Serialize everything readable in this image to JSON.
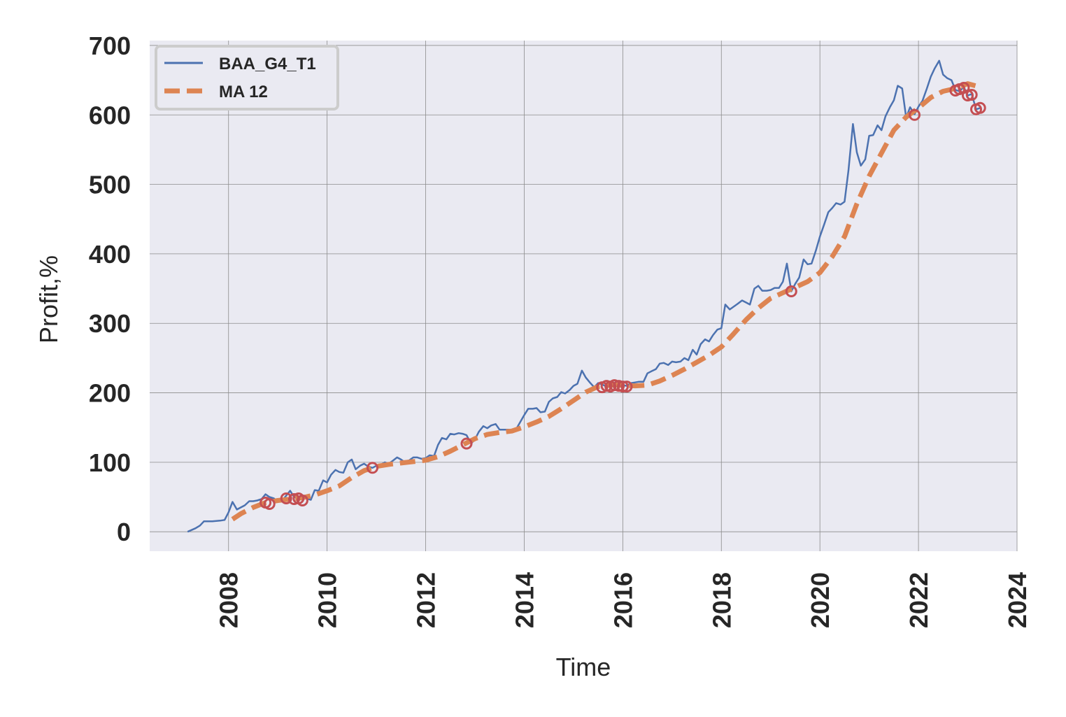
{
  "chart_data": {
    "type": "line",
    "xlabel": "Time",
    "ylabel": "Profit,%",
    "xlim": [
      2006.4,
      2024.0
    ],
    "ylim": [
      -28,
      707
    ],
    "x_ticks": [
      2008,
      2010,
      2012,
      2014,
      2016,
      2018,
      2020,
      2022,
      2024
    ],
    "y_ticks": [
      0,
      100,
      200,
      300,
      400,
      500,
      600,
      700
    ],
    "grid": true,
    "legend_position": "top-left",
    "background_color": "#eaeaf2",
    "series": [
      {
        "name": "BAA_G4_T1",
        "color": "#4c72b0",
        "style": "solid",
        "points": [
          [
            2007.17,
            0
          ],
          [
            2007.33,
            5
          ],
          [
            2007.42,
            9
          ],
          [
            2007.5,
            15
          ],
          [
            2007.67,
            15
          ],
          [
            2007.83,
            16
          ],
          [
            2007.92,
            17
          ],
          [
            2008.0,
            28
          ],
          [
            2008.08,
            43
          ],
          [
            2008.17,
            32
          ],
          [
            2008.25,
            35
          ],
          [
            2008.33,
            38
          ],
          [
            2008.42,
            44
          ],
          [
            2008.5,
            44
          ],
          [
            2008.58,
            45
          ],
          [
            2008.67,
            47
          ],
          [
            2008.75,
            54
          ],
          [
            2008.83,
            50
          ],
          [
            2008.92,
            48
          ],
          [
            2009.0,
            43
          ],
          [
            2009.08,
            44
          ],
          [
            2009.17,
            52
          ],
          [
            2009.25,
            59
          ],
          [
            2009.33,
            50
          ],
          [
            2009.42,
            48
          ],
          [
            2009.5,
            50
          ],
          [
            2009.58,
            48
          ],
          [
            2009.67,
            46
          ],
          [
            2009.75,
            60
          ],
          [
            2009.83,
            59
          ],
          [
            2009.92,
            74
          ],
          [
            2010.0,
            71
          ],
          [
            2010.08,
            82
          ],
          [
            2010.17,
            89
          ],
          [
            2010.25,
            86
          ],
          [
            2010.33,
            85
          ],
          [
            2010.42,
            100
          ],
          [
            2010.5,
            104
          ],
          [
            2010.58,
            90
          ],
          [
            2010.67,
            95
          ],
          [
            2010.75,
            98
          ],
          [
            2010.83,
            94
          ],
          [
            2010.92,
            92
          ],
          [
            2011.0,
            95
          ],
          [
            2011.08,
            96
          ],
          [
            2011.17,
            100
          ],
          [
            2011.25,
            98
          ],
          [
            2011.33,
            102
          ],
          [
            2011.42,
            107
          ],
          [
            2011.5,
            104
          ],
          [
            2011.58,
            100
          ],
          [
            2011.67,
            103
          ],
          [
            2011.75,
            107
          ],
          [
            2011.83,
            107
          ],
          [
            2011.92,
            105
          ],
          [
            2012.0,
            106
          ],
          [
            2012.08,
            110
          ],
          [
            2012.17,
            109
          ],
          [
            2012.25,
            125
          ],
          [
            2012.33,
            135
          ],
          [
            2012.42,
            133
          ],
          [
            2012.5,
            141
          ],
          [
            2012.58,
            140
          ],
          [
            2012.67,
            142
          ],
          [
            2012.75,
            141
          ],
          [
            2012.83,
            139
          ],
          [
            2012.92,
            127
          ],
          [
            2013.0,
            133
          ],
          [
            2013.08,
            144
          ],
          [
            2013.17,
            152
          ],
          [
            2013.25,
            149
          ],
          [
            2013.33,
            153
          ],
          [
            2013.42,
            155
          ],
          [
            2013.5,
            147
          ],
          [
            2013.58,
            147
          ],
          [
            2013.67,
            147
          ],
          [
            2013.75,
            147
          ],
          [
            2013.83,
            147
          ],
          [
            2013.92,
            158
          ],
          [
            2014.0,
            168
          ],
          [
            2014.08,
            177
          ],
          [
            2014.17,
            177
          ],
          [
            2014.25,
            178
          ],
          [
            2014.33,
            172
          ],
          [
            2014.42,
            173
          ],
          [
            2014.5,
            187
          ],
          [
            2014.58,
            192
          ],
          [
            2014.67,
            194
          ],
          [
            2014.75,
            201
          ],
          [
            2014.83,
            199
          ],
          [
            2014.92,
            204
          ],
          [
            2015.0,
            210
          ],
          [
            2015.08,
            213
          ],
          [
            2015.17,
            232
          ],
          [
            2015.25,
            222
          ],
          [
            2015.33,
            215
          ],
          [
            2015.42,
            208
          ],
          [
            2015.5,
            214
          ],
          [
            2015.58,
            212
          ],
          [
            2015.67,
            209
          ],
          [
            2015.75,
            210
          ],
          [
            2015.83,
            214
          ],
          [
            2015.92,
            212
          ],
          [
            2016.0,
            211
          ],
          [
            2016.08,
            210
          ],
          [
            2016.17,
            214
          ],
          [
            2016.25,
            215
          ],
          [
            2016.33,
            216
          ],
          [
            2016.42,
            216
          ],
          [
            2016.5,
            228
          ],
          [
            2016.58,
            231
          ],
          [
            2016.67,
            234
          ],
          [
            2016.75,
            242
          ],
          [
            2016.83,
            243
          ],
          [
            2016.92,
            240
          ],
          [
            2017.0,
            245
          ],
          [
            2017.08,
            244
          ],
          [
            2017.17,
            245
          ],
          [
            2017.25,
            250
          ],
          [
            2017.33,
            247
          ],
          [
            2017.42,
            262
          ],
          [
            2017.5,
            255
          ],
          [
            2017.58,
            270
          ],
          [
            2017.67,
            277
          ],
          [
            2017.75,
            274
          ],
          [
            2017.83,
            283
          ],
          [
            2017.92,
            291
          ],
          [
            2018.0,
            293
          ],
          [
            2018.08,
            327
          ],
          [
            2018.17,
            320
          ],
          [
            2018.25,
            324
          ],
          [
            2018.33,
            328
          ],
          [
            2018.42,
            333
          ],
          [
            2018.5,
            330
          ],
          [
            2018.58,
            327
          ],
          [
            2018.67,
            350
          ],
          [
            2018.75,
            354
          ],
          [
            2018.83,
            347
          ],
          [
            2018.92,
            347
          ],
          [
            2019.0,
            348
          ],
          [
            2019.08,
            351
          ],
          [
            2019.17,
            351
          ],
          [
            2019.25,
            360
          ],
          [
            2019.33,
            386
          ],
          [
            2019.42,
            346
          ],
          [
            2019.5,
            357
          ],
          [
            2019.58,
            366
          ],
          [
            2019.67,
            392
          ],
          [
            2019.75,
            385
          ],
          [
            2019.83,
            386
          ],
          [
            2019.92,
            405
          ],
          [
            2020.0,
            425
          ],
          [
            2020.08,
            441
          ],
          [
            2020.17,
            460
          ],
          [
            2020.25,
            466
          ],
          [
            2020.33,
            473
          ],
          [
            2020.42,
            471
          ],
          [
            2020.5,
            475
          ],
          [
            2020.58,
            520
          ],
          [
            2020.67,
            587
          ],
          [
            2020.75,
            546
          ],
          [
            2020.83,
            527
          ],
          [
            2020.92,
            536
          ],
          [
            2021.0,
            570
          ],
          [
            2021.08,
            571
          ],
          [
            2021.17,
            585
          ],
          [
            2021.25,
            578
          ],
          [
            2021.33,
            598
          ],
          [
            2021.42,
            611
          ],
          [
            2021.5,
            621
          ],
          [
            2021.58,
            642
          ],
          [
            2021.67,
            638
          ],
          [
            2021.75,
            596
          ],
          [
            2021.83,
            611
          ],
          [
            2021.92,
            601
          ],
          [
            2022.0,
            612
          ],
          [
            2022.08,
            620
          ],
          [
            2022.17,
            638
          ],
          [
            2022.25,
            655
          ],
          [
            2022.33,
            667
          ],
          [
            2022.42,
            678
          ],
          [
            2022.5,
            658
          ],
          [
            2022.58,
            653
          ],
          [
            2022.67,
            650
          ],
          [
            2022.75,
            636
          ],
          [
            2022.83,
            634
          ],
          [
            2022.92,
            640
          ],
          [
            2023.0,
            628
          ],
          [
            2023.08,
            630
          ],
          [
            2023.17,
            608
          ],
          [
            2023.25,
            610
          ]
        ]
      },
      {
        "name": "MA 12",
        "color": "#dd8452",
        "style": "dashed",
        "points": [
          [
            2008.08,
            18
          ],
          [
            2008.25,
            26
          ],
          [
            2008.5,
            35
          ],
          [
            2008.75,
            42
          ],
          [
            2009.0,
            45
          ],
          [
            2009.25,
            47
          ],
          [
            2009.5,
            49
          ],
          [
            2009.75,
            53
          ],
          [
            2010.0,
            59
          ],
          [
            2010.25,
            66
          ],
          [
            2010.5,
            78
          ],
          [
            2010.75,
            88
          ],
          [
            2011.0,
            94
          ],
          [
            2011.25,
            97
          ],
          [
            2011.5,
            99
          ],
          [
            2011.75,
            101
          ],
          [
            2012.0,
            103
          ],
          [
            2012.25,
            108
          ],
          [
            2012.5,
            116
          ],
          [
            2012.75,
            125
          ],
          [
            2013.0,
            134
          ],
          [
            2013.25,
            140
          ],
          [
            2013.5,
            143
          ],
          [
            2013.75,
            145
          ],
          [
            2014.0,
            151
          ],
          [
            2014.25,
            158
          ],
          [
            2014.5,
            166
          ],
          [
            2014.75,
            177
          ],
          [
            2015.0,
            189
          ],
          [
            2015.25,
            201
          ],
          [
            2015.5,
            209
          ],
          [
            2015.75,
            211
          ],
          [
            2016.0,
            211
          ],
          [
            2016.25,
            210
          ],
          [
            2016.5,
            211
          ],
          [
            2016.75,
            217
          ],
          [
            2017.0,
            225
          ],
          [
            2017.25,
            234
          ],
          [
            2017.5,
            244
          ],
          [
            2017.75,
            254
          ],
          [
            2018.0,
            266
          ],
          [
            2018.25,
            285
          ],
          [
            2018.5,
            305
          ],
          [
            2018.75,
            322
          ],
          [
            2019.0,
            336
          ],
          [
            2019.25,
            344
          ],
          [
            2019.5,
            352
          ],
          [
            2019.75,
            360
          ],
          [
            2020.0,
            373
          ],
          [
            2020.25,
            396
          ],
          [
            2020.5,
            425
          ],
          [
            2020.75,
            472
          ],
          [
            2021.0,
            512
          ],
          [
            2021.25,
            545
          ],
          [
            2021.5,
            578
          ],
          [
            2021.75,
            597
          ],
          [
            2022.0,
            610
          ],
          [
            2022.25,
            625
          ],
          [
            2022.5,
            634
          ],
          [
            2022.75,
            638
          ],
          [
            2023.0,
            645
          ],
          [
            2023.25,
            640
          ]
        ]
      }
    ],
    "markers": {
      "color": "#c44e52",
      "style": "open-circle",
      "points": [
        [
          2008.75,
          42
        ],
        [
          2008.83,
          40
        ],
        [
          2009.17,
          48
        ],
        [
          2009.33,
          47
        ],
        [
          2009.42,
          48
        ],
        [
          2009.5,
          45
        ],
        [
          2010.92,
          92
        ],
        [
          2012.83,
          127
        ],
        [
          2015.58,
          208
        ],
        [
          2015.67,
          210
        ],
        [
          2015.75,
          209
        ],
        [
          2015.83,
          211
        ],
        [
          2015.92,
          210
        ],
        [
          2016.0,
          209
        ],
        [
          2016.08,
          209
        ],
        [
          2019.42,
          346
        ],
        [
          2021.92,
          600
        ],
        [
          2022.75,
          635
        ],
        [
          2022.83,
          637
        ],
        [
          2022.92,
          639
        ],
        [
          2023.0,
          628
        ],
        [
          2023.08,
          629
        ],
        [
          2023.17,
          608
        ],
        [
          2023.25,
          610
        ]
      ]
    }
  }
}
